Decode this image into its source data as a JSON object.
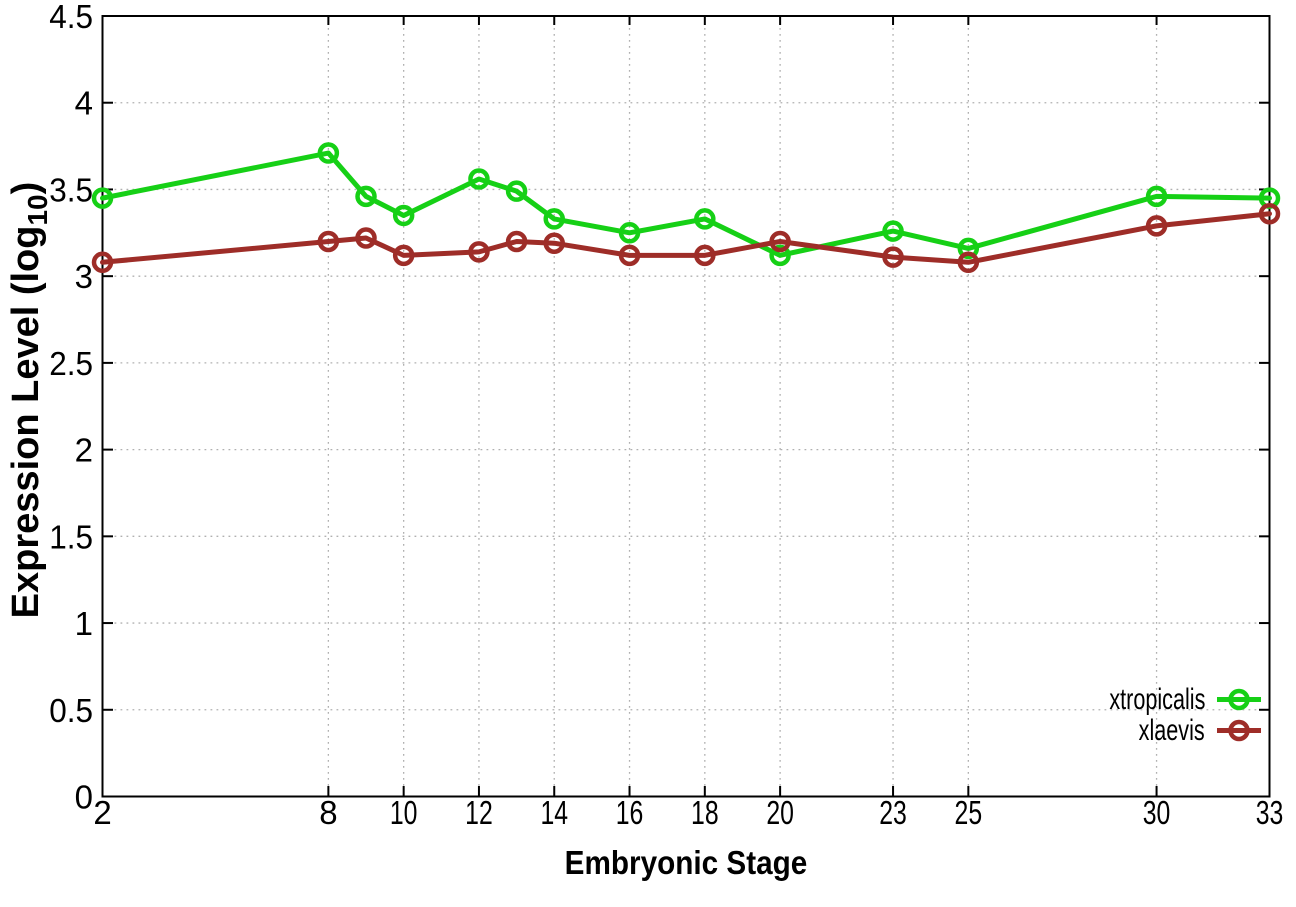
{
  "chart_data": {
    "type": "line",
    "title": "",
    "xlabel": "Embryonic Stage",
    "ylabel": "Expression Level (log10)",
    "ylabel_parts": {
      "base": "Expression Level (log",
      "subscript": "10",
      "suffix": ")"
    },
    "x": [
      2,
      8,
      9,
      10,
      12,
      13,
      14,
      16,
      18,
      20,
      23,
      25,
      30,
      33
    ],
    "series": [
      {
        "name": "xtropicalis",
        "color": "#16d016",
        "marker": "open-circle",
        "values": [
          3.45,
          3.71,
          3.46,
          3.35,
          3.56,
          3.49,
          3.33,
          3.25,
          3.33,
          3.12,
          3.26,
          3.16,
          3.46,
          3.45
        ]
      },
      {
        "name": "xlaevis",
        "color": "#9e2d28",
        "marker": "open-circle",
        "values": [
          3.08,
          3.2,
          3.22,
          3.12,
          3.14,
          3.2,
          3.19,
          3.12,
          3.12,
          3.2,
          3.11,
          3.08,
          3.29,
          3.36
        ]
      }
    ],
    "xticks": [
      "2",
      "8",
      "10",
      "12",
      "14",
      "16",
      "18",
      "20",
      "23",
      "25",
      "30",
      "33"
    ],
    "yticks": [
      "0",
      "0.5",
      "1",
      "1.5",
      "2",
      "2.5",
      "3",
      "3.5",
      "4",
      "4.5"
    ],
    "xlim": [
      2,
      33
    ],
    "ylim": [
      0,
      4.5
    ],
    "grid": "dotted",
    "legend_position": "bottom-right"
  },
  "colors": {
    "axis": "#000000",
    "grid": "#b0b0b0",
    "background": "#ffffff",
    "xtropicalis": "#16d016",
    "xlaevis": "#9e2d28"
  }
}
